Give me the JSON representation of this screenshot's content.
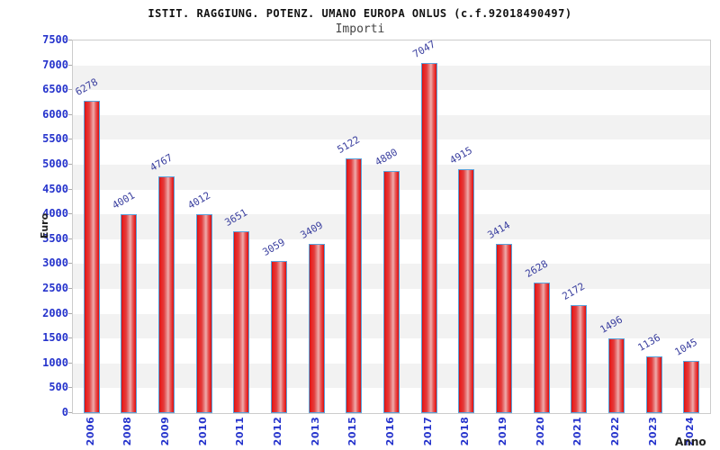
{
  "header": {
    "title": "ISTIT. RAGGIUNG. POTENZ. UMANO EUROPA ONLUS (c.f.92018490497)",
    "subtitle": "Importi"
  },
  "chart_data": {
    "type": "bar",
    "title": "ISTIT. RAGGIUNG. POTENZ. UMANO EUROPA ONLUS (c.f.92018490497)",
    "subtitle": "Importi",
    "xlabel": "Anno",
    "ylabel": "Euro",
    "categories": [
      "2006",
      "2008",
      "2009",
      "2010",
      "2011",
      "2012",
      "2013",
      "2015",
      "2016",
      "2017",
      "2018",
      "2019",
      "2020",
      "2021",
      "2022",
      "2023",
      "2024"
    ],
    "values": [
      6278,
      4001,
      4767,
      4012,
      3651,
      3059,
      3409,
      5122,
      4880,
      7047,
      4915,
      3414,
      2628,
      2172,
      1496,
      1136,
      1045
    ],
    "ylim": [
      0,
      7500
    ],
    "ytick_step": 500,
    "grid": "alternating-horizontal-bands",
    "legend": "none",
    "colors": {
      "bar_fill": "#e32222",
      "bar_highlight": "#efacac",
      "bar_border": "#5aa3dc",
      "tick_label": "#2533cc",
      "value_label": "#3a3f9f",
      "band_alt": "#f2f2f2",
      "plot_border": "#cccccc",
      "title": "#111111",
      "subtitle": "#444444",
      "axis_title": "#222222"
    }
  }
}
